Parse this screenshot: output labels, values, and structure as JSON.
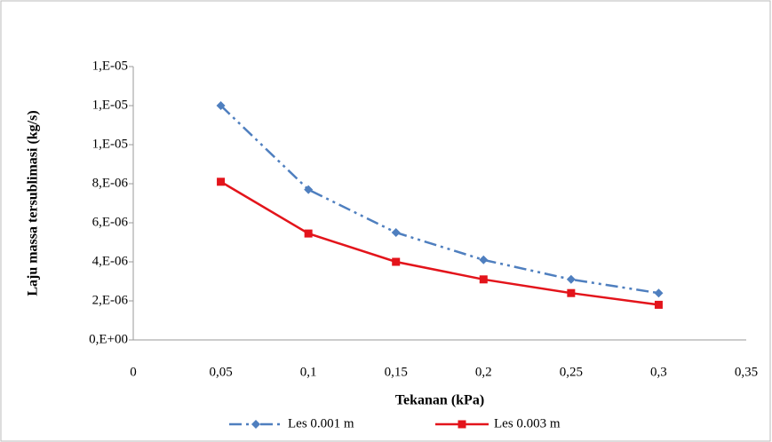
{
  "chart_data": {
    "type": "line",
    "x_label": "Tekanan (kPa)",
    "y_label": "Laju massa tersublimasi (kg/s)",
    "x": [
      0.05,
      0.1,
      0.15,
      0.2,
      0.25,
      0.3
    ],
    "series": [
      {
        "name": "Les 0.001 m",
        "color": "#4f7fbf",
        "marker": "diamond",
        "dash": "dash-dot-dot",
        "values": [
          1.2e-05,
          7.7e-06,
          5.5e-06,
          4.1e-06,
          3.1e-06,
          2.4e-06
        ]
      },
      {
        "name": "Les 0.003 m",
        "color": "#e3141b",
        "marker": "square",
        "dash": "solid",
        "values": [
          8.1e-06,
          5.45e-06,
          4e-06,
          3.1e-06,
          2.4e-06,
          1.8e-06
        ]
      }
    ],
    "xlim": [
      0,
      0.35
    ],
    "xticks": [
      0,
      {
        "value": 0.05,
        "label": "0,05"
      },
      {
        "value": 0.1,
        "label": "0,1"
      },
      {
        "value": 0.15,
        "label": "0,15"
      },
      {
        "value": 0.2,
        "label": "0,2"
      },
      {
        "value": 0.25,
        "label": "0,25"
      },
      {
        "value": 0.3,
        "label": "0,3"
      },
      {
        "value": 0.35,
        "label": "0,35"
      }
    ],
    "ylim": [
      0,
      1.4e-05
    ],
    "yticks": [
      {
        "value": 0,
        "label": "0,E+00"
      },
      {
        "value": 2e-06,
        "label": "2,E-06"
      },
      {
        "value": 4e-06,
        "label": "4,E-06"
      },
      {
        "value": 6e-06,
        "label": "6,E-06"
      },
      {
        "value": 8e-06,
        "label": "8,E-06"
      },
      {
        "value": 1e-05,
        "label": "1,E-05"
      },
      {
        "value": 1.2e-05,
        "label": "1,E-05"
      },
      {
        "value": 1.4e-05,
        "label": "1,E-05"
      }
    ],
    "grid": false,
    "legend": "bottom"
  }
}
